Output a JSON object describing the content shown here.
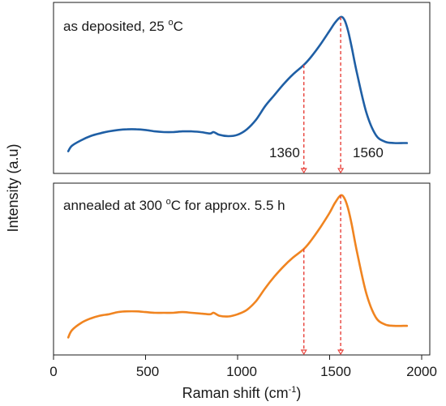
{
  "chart_data": {
    "type": "line",
    "x_axis": {
      "label_main": "Raman shift (cm",
      "label_sup": "-1",
      "label_close": ")",
      "range": [
        0,
        2000
      ],
      "ticks": [
        "0",
        "500",
        "1000",
        "1500",
        "2000"
      ]
    },
    "y_axis": {
      "label": "Intensity (a.u)"
    },
    "grid": false,
    "marker_positions": [
      1360,
      1560
    ],
    "panels": [
      {
        "title_parts": [
          "as deposited, 25 ",
          "o",
          "C"
        ],
        "color": "#1f5fa5",
        "peak_labels": [
          "1360",
          "1560"
        ],
        "y_range": [
          0,
          1
        ],
        "series": {
          "x": [
            80,
            100,
            150,
            200,
            250,
            300,
            350,
            400,
            450,
            500,
            550,
            600,
            650,
            700,
            750,
            800,
            850,
            870,
            900,
            950,
            1000,
            1050,
            1100,
            1150,
            1200,
            1250,
            1300,
            1360,
            1400,
            1450,
            1500,
            1530,
            1560,
            1580,
            1600,
            1620,
            1650,
            1700,
            1750,
            1800,
            1850,
            1900,
            1920
          ],
          "y": [
            0.02,
            0.06,
            0.1,
            0.13,
            0.15,
            0.165,
            0.175,
            0.18,
            0.18,
            0.175,
            0.165,
            0.16,
            0.16,
            0.165,
            0.165,
            0.16,
            0.15,
            0.16,
            0.14,
            0.13,
            0.14,
            0.18,
            0.25,
            0.35,
            0.43,
            0.51,
            0.58,
            0.65,
            0.71,
            0.8,
            0.9,
            0.96,
            1.0,
            0.98,
            0.9,
            0.78,
            0.58,
            0.3,
            0.14,
            0.09,
            0.08,
            0.08,
            0.08
          ]
        }
      },
      {
        "title_parts": [
          "annealed at 300 ",
          "o",
          "C for approx. 5.5 h"
        ],
        "color": "#f08420",
        "peak_labels": [],
        "y_range": [
          0,
          1
        ],
        "series": {
          "x": [
            80,
            100,
            150,
            200,
            250,
            300,
            350,
            400,
            450,
            500,
            550,
            600,
            650,
            700,
            750,
            800,
            850,
            870,
            900,
            950,
            1000,
            1050,
            1100,
            1150,
            1200,
            1250,
            1300,
            1360,
            1400,
            1450,
            1500,
            1530,
            1560,
            1580,
            1600,
            1620,
            1650,
            1700,
            1750,
            1800,
            1850,
            1900,
            1920
          ],
          "y": [
            0.02,
            0.07,
            0.12,
            0.15,
            0.17,
            0.18,
            0.195,
            0.2,
            0.2,
            0.195,
            0.19,
            0.19,
            0.19,
            0.195,
            0.19,
            0.185,
            0.18,
            0.19,
            0.17,
            0.165,
            0.18,
            0.21,
            0.27,
            0.36,
            0.44,
            0.51,
            0.57,
            0.63,
            0.69,
            0.78,
            0.88,
            0.95,
            1.0,
            0.98,
            0.91,
            0.8,
            0.6,
            0.32,
            0.16,
            0.11,
            0.1,
            0.1,
            0.1
          ]
        }
      }
    ]
  }
}
